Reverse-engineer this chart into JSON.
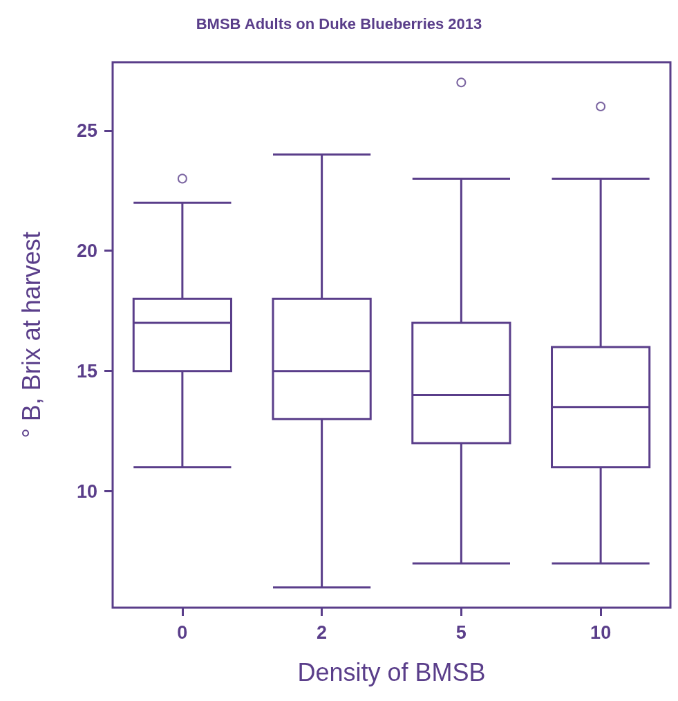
{
  "chart_data": {
    "type": "box",
    "title": "BMSB Adults on Duke Blueberries 2013",
    "xlabel": "Density of BMSB",
    "ylabel": "° B, Brix at harvest",
    "categories": [
      "0",
      "2",
      "5",
      "10"
    ],
    "boxes": [
      {
        "low": 11,
        "q1": 15,
        "median": 17,
        "q3": 18,
        "high": 22,
        "outliers": [
          23
        ]
      },
      {
        "low": 6,
        "q1": 13,
        "median": 15,
        "q3": 18,
        "high": 24
      },
      {
        "low": 7,
        "q1": 12,
        "median": 14,
        "q3": 17,
        "high": 23,
        "outliers": [
          27
        ]
      },
      {
        "low": 7,
        "q1": 11,
        "median": 13.5,
        "q3": 16,
        "high": 23,
        "outliers": [
          26
        ]
      }
    ],
    "color": "#5a3e8a",
    "ylim": [
      5.16,
      27.84
    ],
    "yticks": [
      10,
      15,
      20,
      25
    ]
  }
}
